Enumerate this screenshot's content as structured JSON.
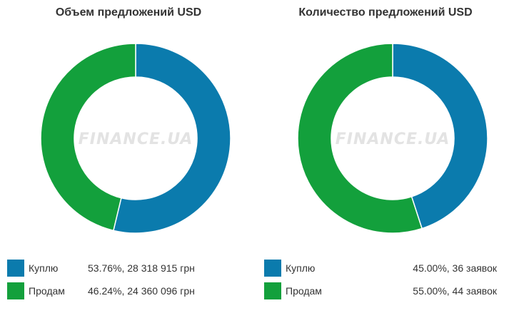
{
  "chart_data": [
    {
      "type": "pie",
      "title": "Объем предложений USD",
      "categories": [
        "Куплю",
        "Продам"
      ],
      "values": [
        53.76,
        46.24
      ],
      "colors": [
        "#0b7bad",
        "#13a03c"
      ],
      "legend": [
        {
          "label": "Куплю",
          "value_text": "53.76%, 28 318 915 грн"
        },
        {
          "label": "Продам",
          "value_text": "46.24%, 24 360 096 грн"
        }
      ],
      "watermark": "FINANCE.UA"
    },
    {
      "type": "pie",
      "title": "Количество предложений USD",
      "categories": [
        "Куплю",
        "Продам"
      ],
      "values": [
        45.0,
        55.0
      ],
      "colors": [
        "#0b7bad",
        "#13a03c"
      ],
      "legend": [
        {
          "label": "Куплю",
          "value_text": "45.00%, 36 заявок"
        },
        {
          "label": "Продам",
          "value_text": "55.00%, 44 заявок"
        }
      ],
      "watermark": "FINANCE.UA"
    }
  ]
}
